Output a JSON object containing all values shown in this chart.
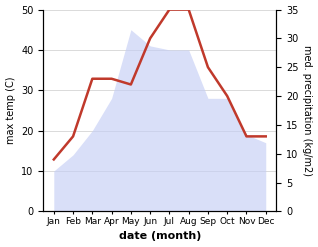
{
  "months": [
    "Jan",
    "Feb",
    "Mar",
    "Apr",
    "May",
    "Jun",
    "Jul",
    "Aug",
    "Sep",
    "Oct",
    "Nov",
    "Dec"
  ],
  "max_temp": [
    10,
    14,
    20,
    28,
    45,
    41,
    40,
    40,
    28,
    28,
    19,
    17
  ],
  "precipitation": [
    9,
    13,
    23,
    23,
    22,
    30,
    35,
    35,
    25,
    20,
    13,
    13
  ],
  "precip_color": "#c0392b",
  "left_ylabel": "max temp (C)",
  "right_ylabel": "med. precipitation (kg/m2)",
  "xlabel": "date (month)",
  "ylim_left": [
    0,
    50
  ],
  "ylim_right": [
    0,
    35
  ],
  "yticks_left": [
    0,
    10,
    20,
    30,
    40,
    50
  ],
  "yticks_right": [
    0,
    5,
    10,
    15,
    20,
    25,
    30,
    35
  ],
  "fill_color": "#c5cef5",
  "fill_alpha": 0.65,
  "line_width": 1.8,
  "bg_color": "#ffffff"
}
